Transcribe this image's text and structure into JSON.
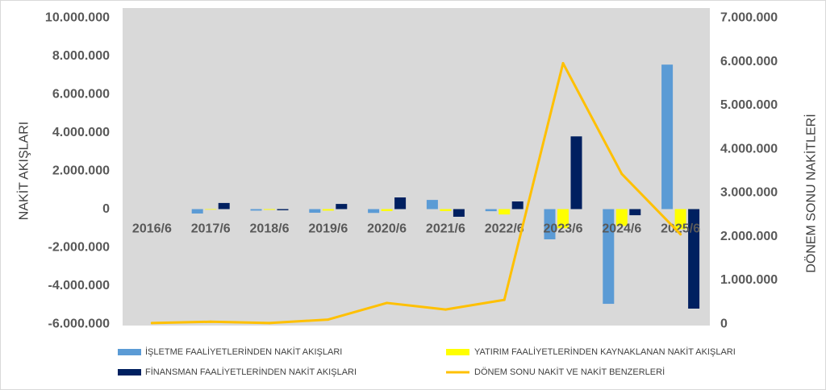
{
  "chart_data": {
    "type": "bar",
    "categories": [
      "2016/6",
      "2017/6",
      "2018/6",
      "2019/6",
      "2020/6",
      "2021/6",
      "2022/6",
      "2023/6",
      "2024/6",
      "2025/6"
    ],
    "series": [
      {
        "name": "İŞLETME FAALİYETLERİNDEN NAKİT AKIŞLARI",
        "type": "bar",
        "axis": "left",
        "color": "#5B9BD5",
        "values": [
          0,
          -230000,
          -80000,
          -190000,
          -200000,
          480000,
          -110000,
          -1580000,
          -4950000,
          7550000
        ]
      },
      {
        "name": "YATIRIM FAALİYETLERİNDEN KAYNAKLANAN NAKİT AKIŞLARI",
        "type": "bar",
        "axis": "left",
        "color": "#FFFF00",
        "values": [
          0,
          -30000,
          -40000,
          -80000,
          -100000,
          -100000,
          -280000,
          -1000000,
          -880000,
          -1050000
        ]
      },
      {
        "name": "FİNANSMAN FAALİYETLERİNDEN NAKİT AKIŞLARI",
        "type": "bar",
        "axis": "left",
        "color": "#002060",
        "values": [
          0,
          320000,
          -60000,
          270000,
          610000,
          -400000,
          400000,
          3800000,
          -320000,
          -5200000
        ]
      },
      {
        "name": "DÖNEM SONU NAKİT VE NAKİT BENZERLERİ",
        "type": "line",
        "axis": "right",
        "color": "#FFC000",
        "values": [
          20000,
          50000,
          20000,
          100000,
          480000,
          330000,
          550000,
          5960000,
          3430000,
          2050000
        ]
      }
    ],
    "ylabel": "NAKİT AKIŞLARI",
    "y2label": "DÖNEM SONU NAKİTLERİ",
    "ylim": [
      -6000000,
      10000000
    ],
    "y2lim": [
      0,
      7000000
    ],
    "yticks": [
      -6000000,
      -4000000,
      -2000000,
      0,
      2000000,
      4000000,
      6000000,
      8000000,
      10000000
    ],
    "ytick_labels": [
      "-6.000.000",
      "-4.000.000",
      "-2.000.000",
      "0",
      "2.000.000",
      "4.000.000",
      "6.000.000",
      "8.000.000",
      "10.000.000"
    ],
    "y2ticks": [
      0,
      1000000,
      2000000,
      3000000,
      4000000,
      5000000,
      6000000,
      7000000
    ],
    "y2tick_labels": [
      "0",
      "1.000.000",
      "2.000.000",
      "3.000.000",
      "4.000.000",
      "5.000.000",
      "6.000.000",
      "7.000.000"
    ],
    "grid": false,
    "legend": "bottom",
    "colors": {
      "plot_background": "#D9D9D9",
      "chart_border": "#D9D9D9"
    }
  }
}
